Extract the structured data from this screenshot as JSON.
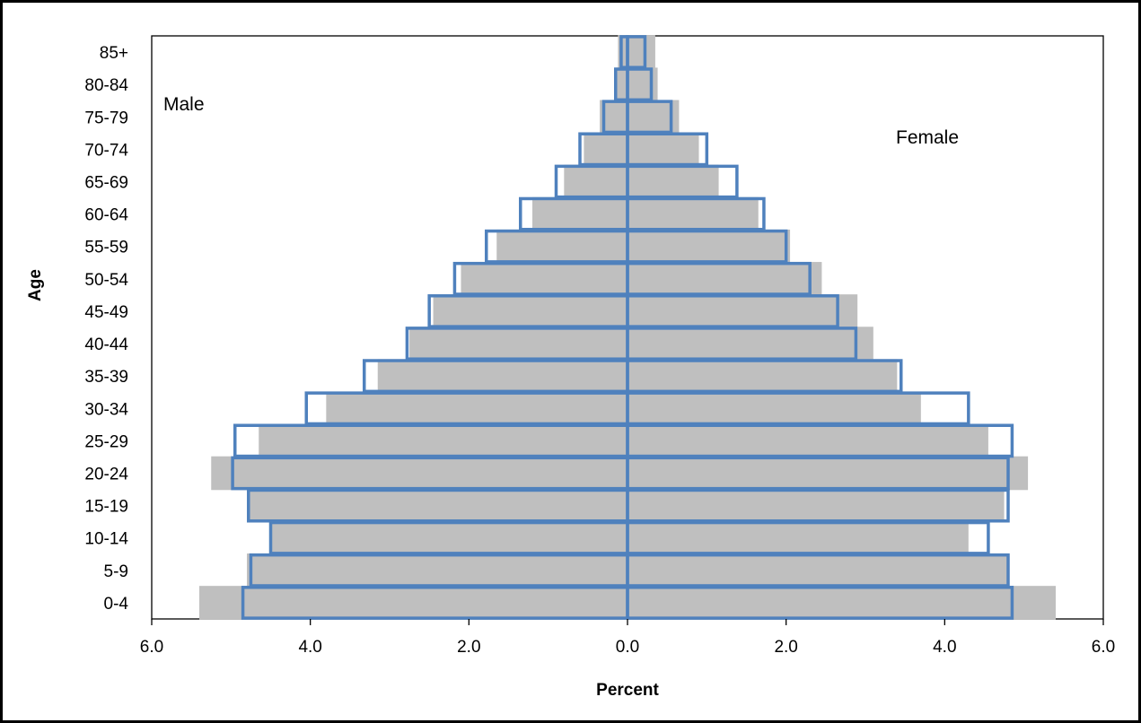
{
  "chart_data": {
    "type": "bar",
    "orientation": "horizontal",
    "subtype": "population-pyramid",
    "title": "",
    "xlabel": "Percent",
    "ylabel": "Age",
    "xlim": [
      -6.0,
      6.0
    ],
    "x_ticks": [
      -6,
      -4,
      -2,
      0,
      2,
      4,
      6
    ],
    "x_tick_labels": [
      "6.0",
      "4.0",
      "2.0",
      "0.0",
      "2.0",
      "4.0",
      "6.0"
    ],
    "categories": [
      "0-4",
      "5-9",
      "10-14",
      "15-19",
      "20-24",
      "25-29",
      "30-34",
      "35-39",
      "40-44",
      "45-49",
      "50-54",
      "55-59",
      "60-64",
      "65-69",
      "70-74",
      "75-79",
      "80-84",
      "85+"
    ],
    "annotations": {
      "left": "Male",
      "right": "Female"
    },
    "legend": "none",
    "grid": false,
    "series": [
      {
        "style": "filled",
        "color": "#bfbfbf",
        "male": [
          5.4,
          4.8,
          4.5,
          4.8,
          5.25,
          4.65,
          3.8,
          3.15,
          2.75,
          2.45,
          2.1,
          1.65,
          1.2,
          0.8,
          0.55,
          0.35,
          0.15,
          0.12
        ],
        "female": [
          5.4,
          4.8,
          4.3,
          4.75,
          5.05,
          4.55,
          3.7,
          3.4,
          3.1,
          2.9,
          2.45,
          2.05,
          1.65,
          1.15,
          0.9,
          0.65,
          0.38,
          0.35
        ]
      },
      {
        "style": "outline",
        "color": "#4f81bd",
        "male": [
          4.85,
          4.75,
          4.5,
          4.78,
          4.98,
          4.95,
          4.05,
          3.32,
          2.78,
          2.5,
          2.18,
          1.78,
          1.35,
          0.9,
          0.6,
          0.3,
          0.15,
          0.08
        ],
        "female": [
          4.85,
          4.8,
          4.55,
          4.8,
          4.8,
          4.85,
          4.3,
          3.45,
          2.88,
          2.65,
          2.3,
          2.0,
          1.72,
          1.38,
          1.0,
          0.55,
          0.3,
          0.22
        ]
      }
    ]
  }
}
